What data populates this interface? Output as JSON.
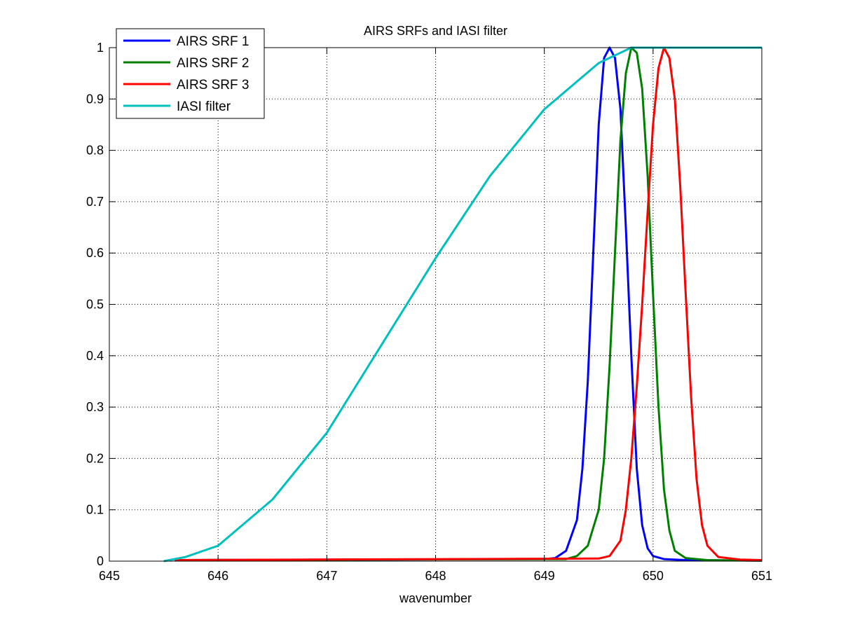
{
  "chart_data": {
    "type": "line",
    "title": "AIRS SRFs and IASI filter",
    "xlabel": "wavenumber",
    "ylabel": "",
    "xlim": [
      645,
      651
    ],
    "ylim": [
      0,
      1
    ],
    "x_ticks": [
      645,
      646,
      647,
      648,
      649,
      650,
      651
    ],
    "y_ticks": [
      0,
      0.1,
      0.2,
      0.3,
      0.4,
      0.5,
      0.6,
      0.7,
      0.8,
      0.9,
      1
    ],
    "x_tick_labels": [
      "645",
      "646",
      "647",
      "648",
      "649",
      "650",
      "651"
    ],
    "y_tick_labels": [
      "0",
      "0.1",
      "0.2",
      "0.3",
      "0.4",
      "0.5",
      "0.6",
      "0.7",
      "0.8",
      "0.9",
      "1"
    ],
    "grid": true,
    "grid_style": "dotted",
    "legend_position": "top-left",
    "series": [
      {
        "name": "AIRS SRF 1",
        "color": "#0000ff",
        "x": [
          645.6,
          649.0,
          649.1,
          649.2,
          649.3,
          649.35,
          649.4,
          649.45,
          649.5,
          649.55,
          649.6,
          649.65,
          649.7,
          649.75,
          649.8,
          649.85,
          649.9,
          649.95,
          650.0,
          650.1,
          650.3,
          651.0
        ],
        "values": [
          0.002,
          0.004,
          0.006,
          0.02,
          0.08,
          0.18,
          0.35,
          0.6,
          0.85,
          0.98,
          1.0,
          0.98,
          0.88,
          0.65,
          0.4,
          0.18,
          0.07,
          0.025,
          0.01,
          0.004,
          0.002,
          0.001
        ]
      },
      {
        "name": "AIRS SRF 2",
        "color": "#008000",
        "x": [
          645.6,
          649.2,
          649.3,
          649.4,
          649.5,
          649.55,
          649.6,
          649.65,
          649.7,
          649.75,
          649.8,
          649.85,
          649.9,
          649.95,
          650.0,
          650.05,
          650.1,
          650.15,
          650.2,
          650.3,
          650.5,
          651.0
        ],
        "values": [
          0.002,
          0.004,
          0.01,
          0.03,
          0.1,
          0.2,
          0.38,
          0.6,
          0.82,
          0.95,
          1.0,
          0.99,
          0.92,
          0.75,
          0.52,
          0.3,
          0.14,
          0.06,
          0.02,
          0.006,
          0.002,
          0.001
        ]
      },
      {
        "name": "AIRS SRF 3",
        "color": "#ff0000",
        "x": [
          645.6,
          649.5,
          649.6,
          649.7,
          649.75,
          649.8,
          649.85,
          649.9,
          649.95,
          650.0,
          650.05,
          650.1,
          650.15,
          650.2,
          650.25,
          650.3,
          650.35,
          650.4,
          650.45,
          650.5,
          650.6,
          650.8,
          651.0
        ],
        "values": [
          0.002,
          0.005,
          0.01,
          0.04,
          0.1,
          0.2,
          0.34,
          0.5,
          0.68,
          0.85,
          0.96,
          1.0,
          0.98,
          0.9,
          0.73,
          0.52,
          0.32,
          0.16,
          0.07,
          0.03,
          0.008,
          0.003,
          0.002
        ]
      },
      {
        "name": "IASI filter",
        "color": "#00bfbf",
        "x": [
          645.5,
          645.7,
          646.0,
          646.5,
          647.0,
          647.5,
          648.0,
          648.5,
          649.0,
          649.5,
          649.8,
          650.0,
          650.5,
          651.0
        ],
        "values": [
          0.0,
          0.008,
          0.03,
          0.12,
          0.25,
          0.42,
          0.59,
          0.75,
          0.88,
          0.97,
          1.0,
          1.0,
          1.0,
          1.0
        ]
      }
    ]
  }
}
